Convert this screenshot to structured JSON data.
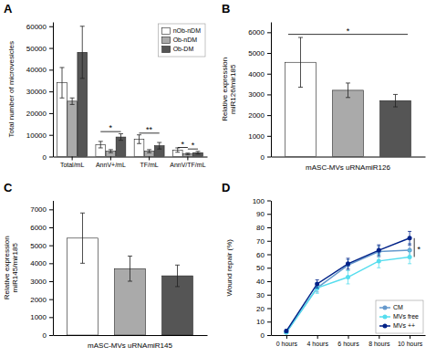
{
  "chart_data": [
    {
      "type": "bar",
      "title": "A",
      "categories": [
        "Total/mL",
        "AnnV+/mL",
        "TF/mL",
        "AnnV/TF/mL"
      ],
      "series": [
        {
          "name": "nOb-nDM",
          "color": "#ffffff",
          "values": [
            34000,
            5500,
            8000,
            3000
          ],
          "errors": [
            7000,
            1500,
            2000,
            1000
          ]
        },
        {
          "name": "Ob-nDM",
          "color": "#aaaaaa",
          "values": [
            25500,
            2500,
            2500,
            1200
          ],
          "errors": [
            1500,
            700,
            700,
            400
          ]
        },
        {
          "name": "Ob-DM",
          "color": "#555555",
          "values": [
            48000,
            9000,
            5000,
            1800
          ],
          "errors": [
            12000,
            1500,
            1500,
            600
          ]
        }
      ],
      "ylabel": "Total number of microvesicles",
      "ylim": [
        0,
        62000
      ],
      "yticks": [
        0,
        10000,
        20000,
        30000,
        40000,
        50000,
        60000
      ],
      "legend": "upper right",
      "annotations": [
        {
          "text": "*",
          "category": "AnnV+/mL",
          "between": [
            "nOb-nDM",
            "Ob-DM"
          ],
          "y": 11500
        },
        {
          "text": "**",
          "category": "TF/mL",
          "between": [
            "nOb-nDM",
            "Ob-DM"
          ],
          "y": 10800
        },
        {
          "text": "*",
          "category": "AnnV/TF/mL",
          "between": [
            "nOb-nDM",
            "Ob-nDM"
          ],
          "y": 4200
        },
        {
          "text": "*",
          "category": "AnnV/TF/mL",
          "between": [
            "Ob-nDM",
            "Ob-DM"
          ],
          "y": 3500
        }
      ]
    },
    {
      "type": "bar",
      "title": "B",
      "values": [
        4550,
        3200,
        2700
      ],
      "errors": [
        1200,
        350,
        300
      ],
      "colors": [
        "#ffffff",
        "#aaaaaa",
        "#555555"
      ],
      "ylabel": "Relative expression\nmiR126/mir185",
      "xlabel": "mASC-MVs uRNAmiR126",
      "ylim": [
        0,
        6500
      ],
      "yticks": [
        0,
        1000,
        2000,
        3000,
        4000,
        5000,
        6000
      ],
      "tick_labels": "y",
      "annotations": [
        {
          "text": "*",
          "y": 5900
        }
      ]
    },
    {
      "type": "bar",
      "title": "C",
      "values": [
        5400,
        3700,
        3300
      ],
      "errors": [
        1400,
        700,
        600
      ],
      "colors": [
        "#ffffff",
        "#aaaaaa",
        "#555555"
      ],
      "ylabel": "Relative expression\nmiR145/mir185",
      "xlabel": "mASC-MVs uRNAmiR145",
      "ylim": [
        0,
        7500
      ],
      "yticks": [
        0,
        1000,
        2000,
        3000,
        4000,
        5000,
        6000,
        7000
      ],
      "tick_labels": "y"
    },
    {
      "type": "line",
      "title": "D",
      "categories": [
        "0 hours",
        "4 hours",
        "6 hours",
        "8 hours",
        "10 hours"
      ],
      "series": [
        {
          "name": "CM",
          "color": "#6699cc",
          "marker": "circle",
          "values": [
            2,
            35,
            52,
            62,
            63
          ],
          "errors": [
            1,
            3,
            4,
            4,
            5
          ]
        },
        {
          "name": "MVs free",
          "color": "#55ddee",
          "marker": "circle",
          "values": [
            2,
            35,
            43,
            55,
            58
          ],
          "errors": [
            1,
            4,
            5,
            5,
            5
          ]
        },
        {
          "name": "MVs ++",
          "color": "#002288",
          "marker": "circle",
          "values": [
            3,
            38,
            53,
            63,
            72
          ],
          "errors": [
            1,
            3,
            4,
            4,
            5
          ]
        }
      ],
      "ylabel": "Wound repair (%)",
      "ylim": [
        0,
        100
      ],
      "yticks": [
        0,
        10,
        20,
        30,
        40,
        50,
        60,
        70,
        80,
        90,
        100
      ],
      "legend": "lower right",
      "annotations": [
        {
          "text": "*",
          "category": "10 hours",
          "between": [
            "MVs free",
            "MVs ++"
          ]
        }
      ]
    }
  ]
}
